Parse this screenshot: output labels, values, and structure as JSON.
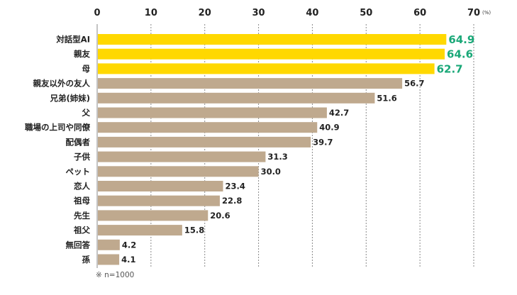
{
  "chart_data": {
    "type": "bar",
    "orientation": "horizontal",
    "categories": [
      "対話型AI",
      "親友",
      "母",
      "親友以外の友人",
      "兄弟(姉妹)",
      "父",
      "職場の上司や同僚",
      "配偶者",
      "子供",
      "ペット",
      "恋人",
      "祖母",
      "先生",
      "祖父",
      "無回答",
      "孫"
    ],
    "values": [
      64.9,
      64.6,
      62.7,
      56.7,
      51.6,
      42.7,
      40.9,
      39.7,
      31.3,
      30.0,
      23.4,
      22.8,
      20.6,
      15.8,
      4.2,
      4.1
    ],
    "value_labels": [
      "64.9",
      "64.6",
      "62.7",
      "56.7",
      "51.6",
      "42.7",
      "40.9",
      "39.7",
      "31.3",
      "30.0",
      "23.4",
      "22.8",
      "20.6",
      "15.8",
      "4.2",
      "4.1"
    ],
    "highlight_count": 3,
    "xlim": [
      0,
      70
    ],
    "xticks": [
      0,
      10,
      20,
      30,
      40,
      50,
      60,
      70
    ],
    "tick_labels": [
      "0",
      "10",
      "20",
      "30",
      "40",
      "50",
      "60",
      "70"
    ],
    "unit": "(%)",
    "axis_position": "top",
    "grid": "vertical dashed",
    "legend": "none",
    "note": "※ n=1000",
    "colors": {
      "highlight": "#ffd800",
      "bar": "#bfa98e",
      "highlight_label": "#1aa878",
      "label": "#222222",
      "grid": "#8a8a8a"
    }
  }
}
